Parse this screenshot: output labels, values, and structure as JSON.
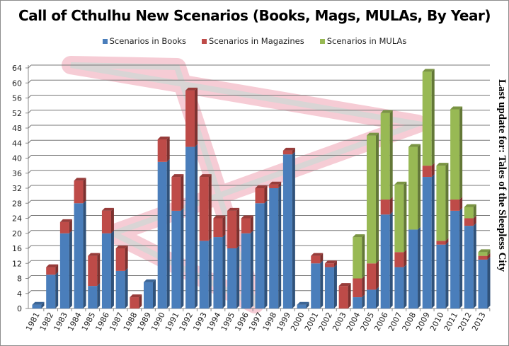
{
  "chart_data": {
    "type": "bar",
    "stacked": true,
    "title": "Call of Cthulhu  New Scenarios  (Books, Mags, MULAs, By Year)",
    "side_note": "Last update for: Tales of the Sleepless City",
    "xlabel": "",
    "ylabel": "",
    "ylim": [
      0,
      64
    ],
    "yticks": [
      0,
      4,
      8,
      12,
      16,
      20,
      24,
      28,
      32,
      36,
      40,
      44,
      48,
      52,
      56,
      60,
      64
    ],
    "grid": true,
    "legend_position": "top",
    "categories": [
      "1981",
      "1982",
      "1983",
      "1984",
      "1985",
      "1986",
      "1987",
      "1988",
      "1989",
      "1990",
      "1991",
      "1992",
      "1993",
      "1994",
      "1995",
      "1996",
      "1997",
      "1998",
      "1999",
      "2000",
      "2001",
      "2002",
      "2003",
      "2004",
      "2005",
      "2006",
      "2007",
      "2008",
      "2009",
      "2010",
      "2011",
      "2012",
      "2013"
    ],
    "series": [
      {
        "name": "Scenarios in Books",
        "color": "#4a7ebb",
        "values": [
          1,
          9,
          20,
          28,
          6,
          20,
          10,
          0,
          7,
          39,
          26,
          43,
          18,
          19,
          16,
          20,
          28,
          32,
          41,
          1,
          12,
          11,
          0,
          3,
          5,
          25,
          11,
          21,
          35,
          17,
          26,
          22,
          13
        ]
      },
      {
        "name": "Scenarios in Magazines",
        "color": "#be4b48",
        "values": [
          0,
          2,
          3,
          6,
          8,
          6,
          6,
          3,
          0,
          6,
          9,
          15,
          17,
          5,
          10,
          4,
          4,
          1,
          1,
          0,
          2,
          1,
          6,
          5,
          7,
          4,
          4,
          0,
          3,
          1,
          3,
          2,
          1
        ]
      },
      {
        "name": "Scenarios in MULAs",
        "color": "#98b954",
        "values": [
          0,
          0,
          0,
          0,
          0,
          0,
          0,
          0,
          0,
          0,
          0,
          0,
          0,
          0,
          0,
          0,
          0,
          0,
          0,
          0,
          0,
          0,
          0,
          11,
          34,
          23,
          18,
          22,
          25,
          20,
          24,
          3,
          1
        ]
      }
    ]
  }
}
